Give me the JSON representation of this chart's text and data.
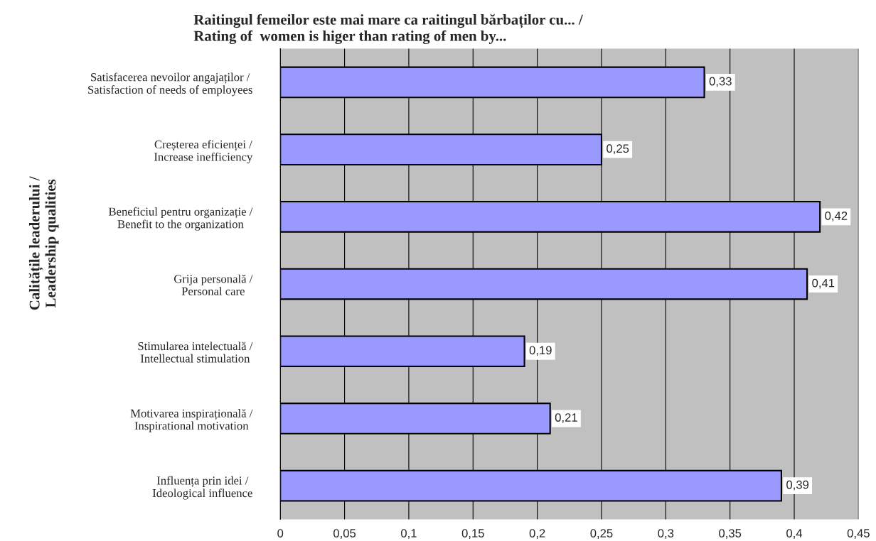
{
  "chart_data": {
    "type": "bar",
    "orientation": "horizontal",
    "title": "Raitingul femeilor este mai mare ca raitingul bărbaților cu... /\nRating of  women is higer than rating of men by...",
    "ylabel": "Calitățile leaderului /\nLeadership qualities",
    "categories": [
      "Satisfacerea nevoilor angajaților /\nSatisfaction of needs of employees",
      "Creșterea eficienței /\nIncrease inefficiency",
      "Beneficiul pentru organizație /\nBenefit to the organization",
      "Grija personală /\nPersonal care",
      "Stimularea intelectuală /\nIntellectual stimulation",
      "Motivarea inspirațională /\nInspirational motivation",
      "Influența prin idei /\nIdeological influence"
    ],
    "values": [
      0.33,
      0.25,
      0.42,
      0.41,
      0.19,
      0.21,
      0.39
    ],
    "value_labels": [
      "0,33",
      "0,25",
      "0,42",
      "0,41",
      "0,19",
      "0,21",
      "0,39"
    ],
    "color": "#9999ff",
    "xlim": [
      0,
      0.45
    ],
    "xticks": [
      0,
      {
        "value": 0.05,
        "label": "0,05"
      },
      {
        "value": 0.1,
        "label": "0,1"
      },
      {
        "value": 0.15,
        "label": "0,15"
      },
      {
        "value": 0.2,
        "label": "0,2"
      },
      {
        "value": 0.25,
        "label": "0,25"
      },
      {
        "value": 0.3,
        "label": "0,3"
      },
      {
        "value": 0.35,
        "label": "0,35"
      },
      {
        "value": 0.4,
        "label": "0,4"
      },
      {
        "value": 0.45,
        "label": "0,45"
      }
    ],
    "grid": "x",
    "legend": false
  }
}
